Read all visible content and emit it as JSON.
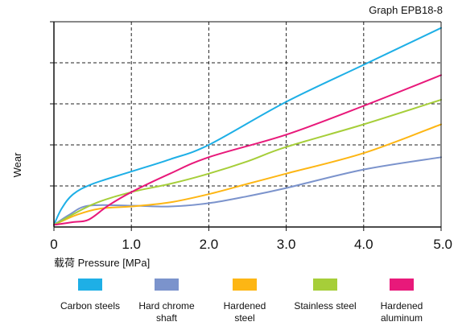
{
  "chart_data": {
    "type": "line",
    "title": "Graph EPB18-8",
    "xlabel": "载荷 Pressure  [MPa]",
    "ylabel": "Wear",
    "xlim": [
      0,
      5
    ],
    "ylim": [
      0,
      5
    ],
    "x_ticks": [
      "0",
      "1.0",
      "2.0",
      "3.0",
      "4.0",
      "5.0"
    ],
    "grid": "dashed",
    "legend_position": "bottom",
    "series": [
      {
        "name": "Carbon steels",
        "color": "#1EAFE6",
        "points": [
          [
            0,
            0.05
          ],
          [
            0.1,
            0.45
          ],
          [
            0.25,
            0.8
          ],
          [
            0.5,
            1.05
          ],
          [
            1.0,
            1.35
          ],
          [
            1.5,
            1.65
          ],
          [
            2.0,
            2.0
          ],
          [
            3.0,
            3.05
          ],
          [
            4.0,
            3.95
          ],
          [
            5.0,
            4.85
          ]
        ]
      },
      {
        "name": "Hard chrome shaft",
        "color": "#7B93CC",
        "points": [
          [
            0,
            0.05
          ],
          [
            0.2,
            0.3
          ],
          [
            0.45,
            0.52
          ],
          [
            1.0,
            0.52
          ],
          [
            1.5,
            0.5
          ],
          [
            2.0,
            0.58
          ],
          [
            2.5,
            0.75
          ],
          [
            3.0,
            0.95
          ],
          [
            4.0,
            1.4
          ],
          [
            5.0,
            1.7
          ]
        ]
      },
      {
        "name": "Hardened steel",
        "color": "#FDB614",
        "points": [
          [
            0,
            0.05
          ],
          [
            0.3,
            0.3
          ],
          [
            0.6,
            0.45
          ],
          [
            1.0,
            0.5
          ],
          [
            1.5,
            0.6
          ],
          [
            2.0,
            0.8
          ],
          [
            2.5,
            1.05
          ],
          [
            3.0,
            1.3
          ],
          [
            4.0,
            1.8
          ],
          [
            5.0,
            2.5
          ]
        ]
      },
      {
        "name": "Stainless steel",
        "color": "#A6CE39",
        "points": [
          [
            0,
            0.05
          ],
          [
            0.5,
            0.55
          ],
          [
            1.0,
            0.85
          ],
          [
            1.5,
            1.05
          ],
          [
            2.0,
            1.3
          ],
          [
            2.5,
            1.6
          ],
          [
            3.0,
            1.95
          ],
          [
            4.0,
            2.5
          ],
          [
            5.0,
            3.1
          ]
        ]
      },
      {
        "name": "Hardened aluminum",
        "color": "#E8197A",
        "points": [
          [
            0,
            0.05
          ],
          [
            0.25,
            0.12
          ],
          [
            0.45,
            0.18
          ],
          [
            0.7,
            0.52
          ],
          [
            1.0,
            0.85
          ],
          [
            1.5,
            1.3
          ],
          [
            2.0,
            1.7
          ],
          [
            3.0,
            2.25
          ],
          [
            4.0,
            2.95
          ],
          [
            5.0,
            3.7
          ]
        ]
      }
    ]
  },
  "legend": [
    {
      "line1": "Carbon steels",
      "line2": "",
      "color": "#1EAFE6"
    },
    {
      "line1": "Hard chrome",
      "line2": "shaft",
      "color": "#7B93CC"
    },
    {
      "line1": "Hardened",
      "line2": "steel",
      "color": "#FDB614"
    },
    {
      "line1": "Stainless steel",
      "line2": "",
      "color": "#A6CE39"
    },
    {
      "line1": "Hardened",
      "line2": "aluminum",
      "color": "#E8197A"
    }
  ]
}
